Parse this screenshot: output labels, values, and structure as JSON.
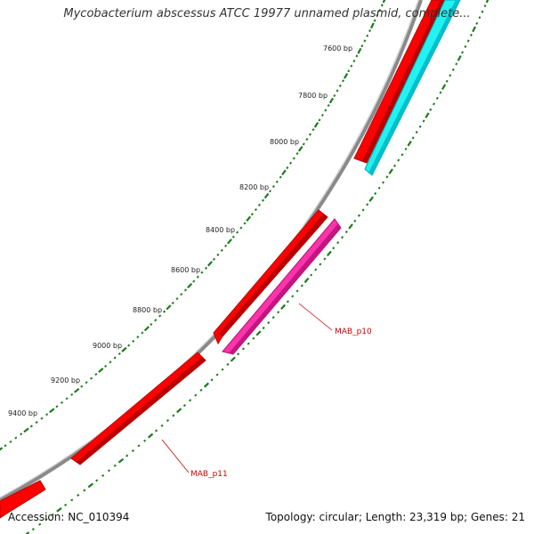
{
  "header": {
    "title": "Mycobacterium abscessus ATCC 19977 unnamed plasmid, complete..."
  },
  "footer": {
    "accession": "Accession: NC_010394",
    "summary": "Topology: circular; Length: 23,319 bp; Genes: 21"
  },
  "map": {
    "tick_labels": [
      {
        "bp": 7600,
        "text": "7600 bp"
      },
      {
        "bp": 7800,
        "text": "7800 bp"
      },
      {
        "bp": 8000,
        "text": "8000 bp"
      },
      {
        "bp": 8200,
        "text": "8200 bp"
      },
      {
        "bp": 8400,
        "text": "8400 bp"
      },
      {
        "bp": 8600,
        "text": "8600 bp"
      },
      {
        "bp": 8800,
        "text": "8800 bp"
      },
      {
        "bp": 9000,
        "text": "9000 bp"
      },
      {
        "bp": 9200,
        "text": "9200 bp"
      },
      {
        "bp": 9400,
        "text": "9400 bp"
      }
    ],
    "gene_labels": [
      {
        "name": "MAB_p10"
      },
      {
        "name": "MAB_p11"
      }
    ],
    "colors": {
      "backbone": "#888888",
      "forward_gene": "#ff0000",
      "forward_gene_dark": "#c80000",
      "reverse_gene_magenta": "#ff33aa",
      "reverse_gene_magenta_dark": "#c0107a",
      "reverse_gene_cyan": "#22f2f2",
      "reverse_gene_cyan_dark": "#00b8c4",
      "ticks": "#1a7a1a",
      "gene_label": "#cc0000"
    }
  }
}
